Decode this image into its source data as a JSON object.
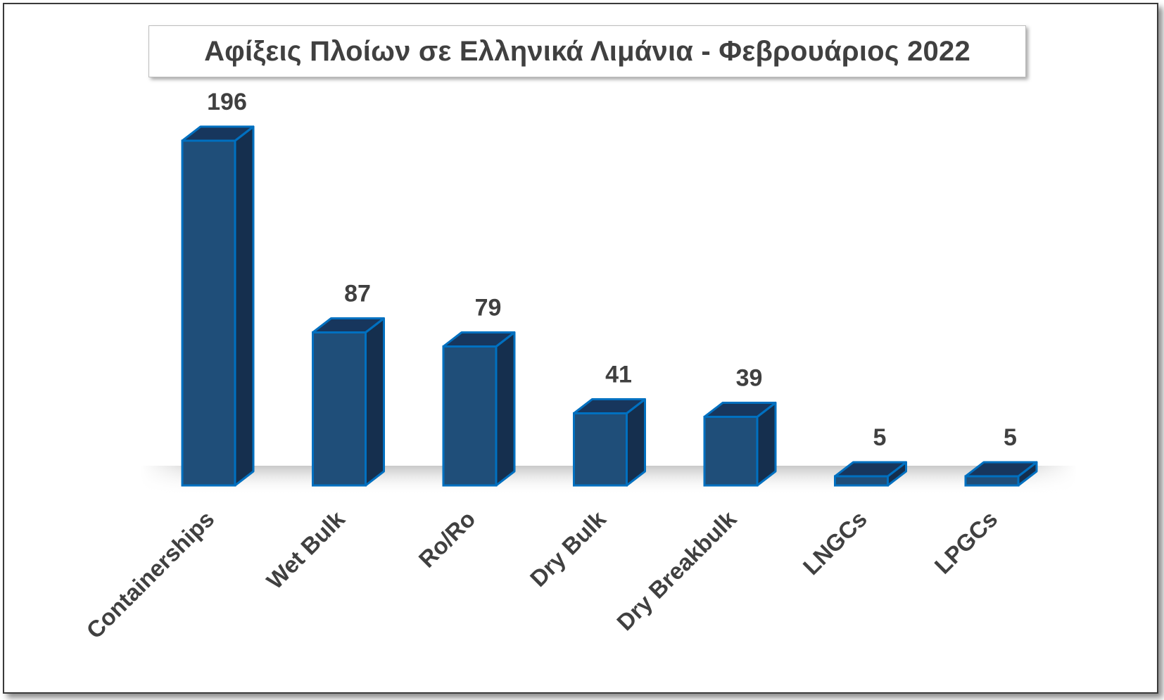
{
  "chart_data": {
    "type": "bar",
    "title": "Αφίξεις Πλοίων σε Ελληνικά Λιμάνια - Φεβρουάριος 2022",
    "categories": [
      "Containerships",
      "Wet Bulk",
      "Ro/Ro",
      "Dry Bulk",
      "Dry Breakbulk",
      "LNGCs",
      "LPGCs"
    ],
    "values": [
      196,
      87,
      79,
      41,
      39,
      5,
      5
    ],
    "data_labels": [
      "196",
      "87",
      "79",
      "41",
      "39",
      "5",
      "5"
    ],
    "xlabel": "",
    "ylabel": "",
    "ylim": [
      0,
      196
    ],
    "grid": false,
    "legend": "none",
    "style": "3d-column",
    "colors": {
      "bar_front": "#1f4e79",
      "bar_top": "#17365d",
      "bar_side": "#152f4e",
      "bar_edge": "#0070c0",
      "label_text": "#404040"
    }
  }
}
